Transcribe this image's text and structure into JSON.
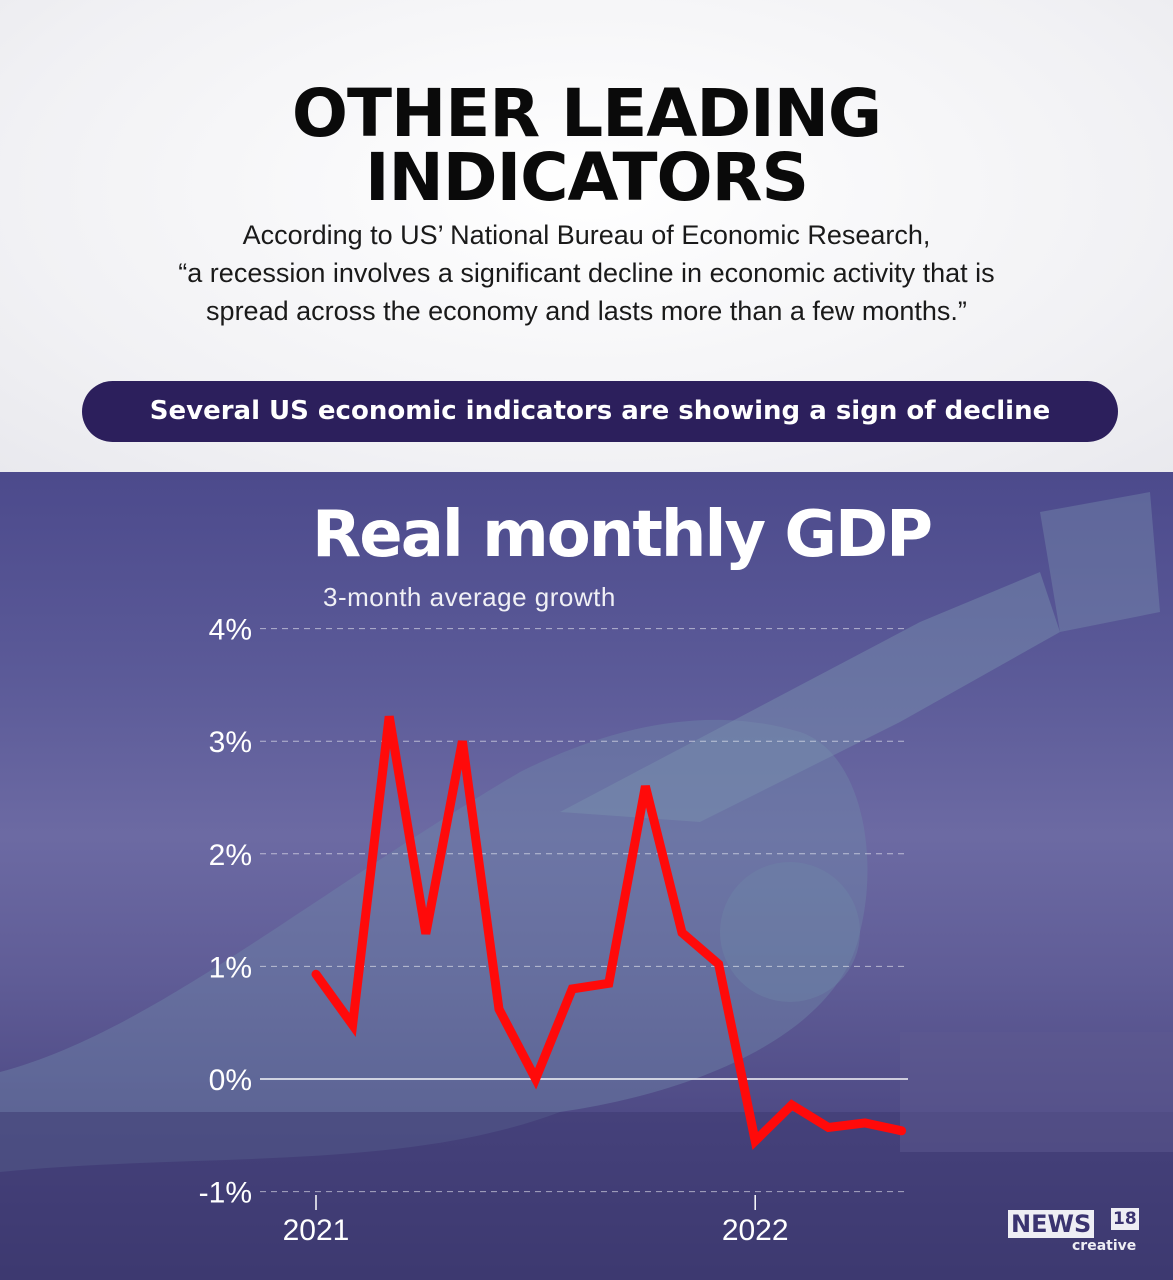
{
  "header": {
    "title_line1": "OTHER LEADING",
    "title_line2": "INDICATORS",
    "quote_line1": "According to US’ National Bureau of Economic Research,",
    "quote_line2": "“a recession involves a significant decline in economic activity that is",
    "quote_line3": "spread across the economy and lasts more than a few months.”",
    "banner": "Several US economic indicators are showing a sign of decline"
  },
  "logo": {
    "brand": "NEWS",
    "number": "18",
    "tagline": "creative"
  },
  "colors": {
    "banner": "#2c1f5c",
    "line": "#ff0a0a",
    "background_tint": "#4c4a8c"
  },
  "chart_data": {
    "type": "line",
    "title": "Real monthly GDP",
    "subtitle": "3-month average growth",
    "xlabel": "",
    "ylabel": "",
    "ylim": [
      -1,
      4
    ],
    "yticks": [
      "-1%",
      "0%",
      "1%",
      "2%",
      "3%",
      "4%"
    ],
    "xticks": [
      "2021",
      "2022"
    ],
    "grid": true,
    "x": [
      "2021-01",
      "2021-02",
      "2021-03",
      "2021-04",
      "2021-05",
      "2021-06",
      "2021-07",
      "2021-08",
      "2021-09",
      "2021-10",
      "2021-11",
      "2021-12",
      "2022-01",
      "2022-02",
      "2022-03",
      "2022-04",
      "2022-05"
    ],
    "series": [
      {
        "values": [
          0.93,
          0.48,
          3.22,
          1.29,
          3.0,
          0.62,
          0.0,
          0.8,
          0.85,
          2.6,
          1.3,
          1.02,
          -0.55,
          -0.23,
          -0.43,
          -0.39,
          -0.46
        ]
      }
    ]
  }
}
